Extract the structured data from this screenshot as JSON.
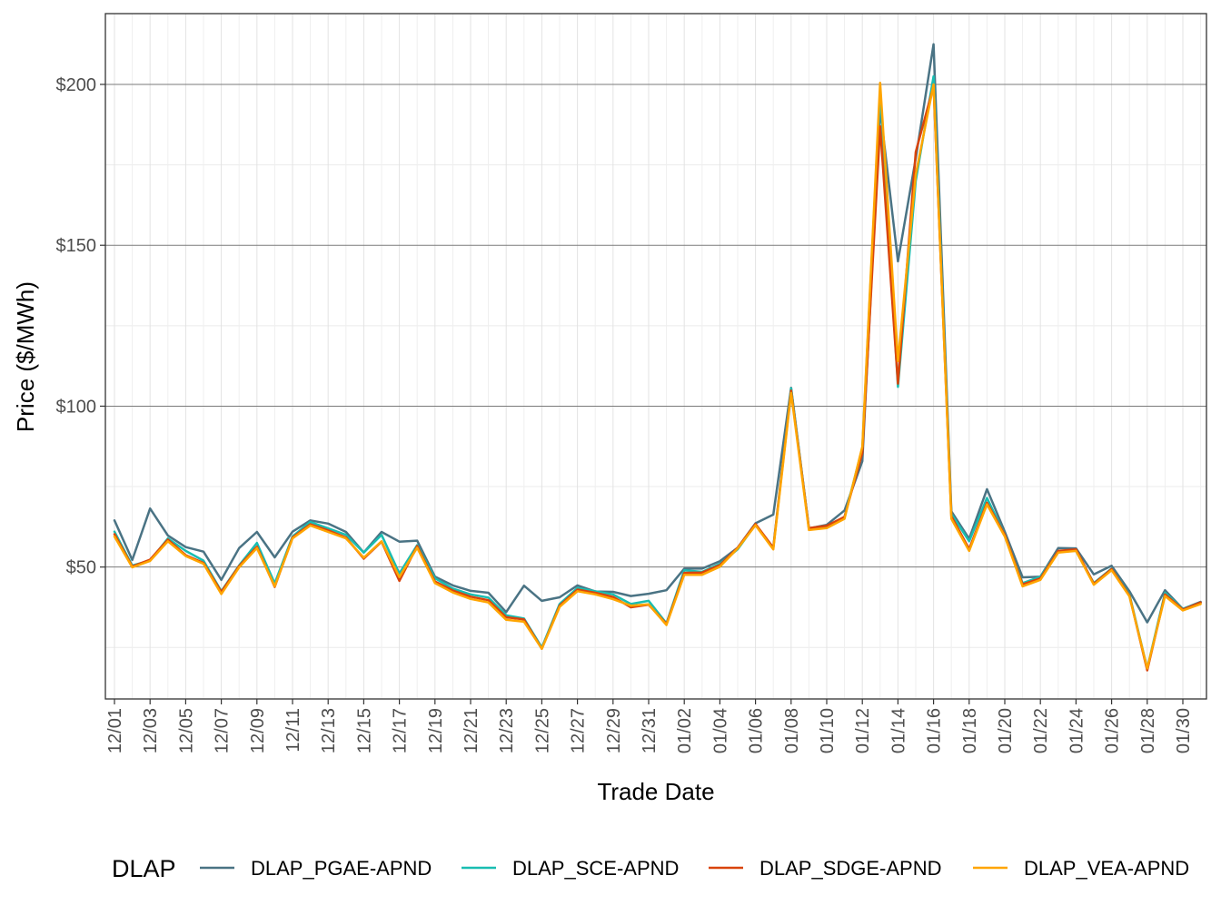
{
  "chart_data": {
    "type": "line",
    "xlabel": "Trade Date",
    "ylabel": "Price ($/MWh)",
    "x": [
      "12/01",
      "12/02",
      "12/03",
      "12/04",
      "12/05",
      "12/06",
      "12/07",
      "12/08",
      "12/09",
      "12/10",
      "12/11",
      "12/12",
      "12/13",
      "12/14",
      "12/15",
      "12/16",
      "12/17",
      "12/18",
      "12/19",
      "12/20",
      "12/21",
      "12/22",
      "12/23",
      "12/24",
      "12/25",
      "12/26",
      "12/27",
      "12/28",
      "12/29",
      "12/30",
      "12/31",
      "01/01",
      "01/02",
      "01/03",
      "01/04",
      "01/05",
      "01/06",
      "01/07",
      "01/08",
      "01/09",
      "01/10",
      "01/11",
      "01/12",
      "01/13",
      "01/14",
      "01/15",
      "01/16",
      "01/17",
      "01/18",
      "01/19",
      "01/20",
      "01/21",
      "01/22",
      "01/23",
      "01/24",
      "01/25",
      "01/26",
      "01/27",
      "01/28",
      "01/29",
      "01/30",
      "01/31"
    ],
    "x_tick_labels": [
      "12/01",
      "12/03",
      "12/05",
      "12/07",
      "12/09",
      "12/11",
      "12/13",
      "12/15",
      "12/17",
      "12/19",
      "12/21",
      "12/23",
      "12/25",
      "12/27",
      "12/29",
      "12/31",
      "01/02",
      "01/04",
      "01/06",
      "01/08",
      "01/10",
      "01/12",
      "01/14",
      "01/16",
      "01/18",
      "01/20",
      "01/22",
      "01/24",
      "01/26",
      "01/28",
      "01/30"
    ],
    "y_ticks": [
      50,
      100,
      150,
      200
    ],
    "y_tick_labels": [
      "$50",
      "$100",
      "$150",
      "$200"
    ],
    "ylim": [
      9,
      222
    ],
    "grid": true,
    "legend": {
      "title": "DLAP",
      "position": "bottom"
    },
    "series": [
      {
        "name": "DLAP_PGAE-APND",
        "color": "#4a7384",
        "values": [
          64.5,
          52.2,
          68.2,
          59.8,
          56.2,
          54.8,
          46.0,
          55.9,
          60.9,
          53.0,
          61.0,
          64.5,
          63.5,
          60.9,
          54.5,
          60.9,
          57.9,
          58.2,
          47.0,
          44.3,
          42.6,
          42.0,
          36.0,
          44.2,
          39.5,
          40.6,
          44.3,
          42.4,
          42.3,
          41.0,
          41.7,
          42.8,
          49.5,
          49.5,
          51.8,
          56.0,
          63.6,
          66.3,
          105.7,
          62.0,
          63.1,
          67.6,
          82.9,
          192.5,
          145.0,
          177.0,
          212.5,
          67.3,
          58.8,
          74.2,
          61.0,
          46.8,
          47.0,
          55.9,
          55.8,
          47.7,
          50.4,
          42.5,
          32.8,
          42.8,
          37.0,
          39.2
        ]
      },
      {
        "name": "DLAP_SCE-APND",
        "color": "#19bdb1",
        "values": [
          61.0,
          50.5,
          52.0,
          58.9,
          55.0,
          52.0,
          42.5,
          50.5,
          57.5,
          44.9,
          59.5,
          64.0,
          62.0,
          60.0,
          54.5,
          60.0,
          48.0,
          56.8,
          46.5,
          43.3,
          41.5,
          40.5,
          35.0,
          34.0,
          25.0,
          38.5,
          43.5,
          42.5,
          41.5,
          38.5,
          39.5,
          32.5,
          49.0,
          48.5,
          51.0,
          55.5,
          63.2,
          56.0,
          105.5,
          62.0,
          62.5,
          65.5,
          87.0,
          198.0,
          106.0,
          170.0,
          202.5,
          66.5,
          58.0,
          71.5,
          60.0,
          45.0,
          47.0,
          55.0,
          55.0,
          45.0,
          49.5,
          41.5,
          18.5,
          42.0,
          37.0,
          39.0
        ]
      },
      {
        "name": "DLAP_SDGE-APND",
        "color": "#d9440c",
        "values": [
          60.2,
          50.2,
          52.3,
          58.5,
          53.7,
          51.3,
          42.3,
          50.3,
          56.3,
          43.8,
          59.2,
          63.3,
          61.4,
          59.2,
          52.6,
          57.9,
          45.7,
          56.5,
          45.5,
          42.7,
          40.8,
          39.7,
          34.4,
          33.7,
          24.6,
          38.0,
          43.0,
          42.0,
          40.7,
          37.5,
          38.3,
          32.3,
          48.2,
          48.3,
          50.6,
          56.0,
          63.4,
          56.0,
          104.8,
          62.1,
          62.8,
          65.6,
          85.5,
          187.0,
          107.0,
          179.0,
          199.5,
          65.8,
          55.6,
          70.0,
          60.0,
          44.6,
          46.5,
          55.0,
          55.5,
          44.8,
          49.4,
          41.2,
          17.9,
          41.5,
          36.8,
          39.0
        ]
      },
      {
        "name": "DLAP_VEA-APND",
        "color": "#ffa500",
        "values": [
          59.5,
          49.9,
          51.9,
          58.0,
          53.4,
          51.0,
          41.6,
          49.9,
          55.9,
          44.0,
          58.9,
          62.9,
          60.9,
          58.9,
          52.9,
          58.0,
          46.9,
          56.0,
          45.0,
          42.1,
          40.1,
          39.0,
          33.6,
          33.0,
          24.6,
          37.6,
          42.5,
          41.5,
          40.0,
          38.0,
          38.4,
          32.0,
          47.6,
          47.6,
          50.1,
          55.8,
          63.0,
          55.5,
          104.1,
          61.5,
          62.1,
          65.0,
          87.4,
          200.5,
          114.0,
          172.0,
          200.0,
          65.0,
          55.0,
          69.5,
          59.5,
          44.0,
          46.0,
          54.5,
          55.0,
          44.5,
          49.0,
          40.9,
          18.5,
          41.0,
          36.5,
          38.5
        ]
      }
    ]
  }
}
